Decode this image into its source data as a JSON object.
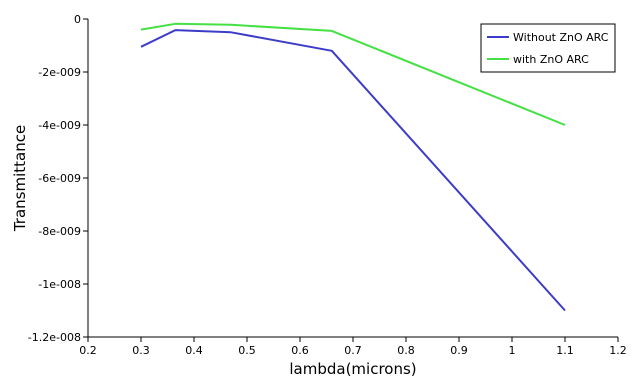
{
  "chart_data": {
    "type": "line",
    "title": "",
    "xlabel": "lambda(microns)",
    "ylabel": "Transmittance",
    "xlim": [
      0.2,
      1.2
    ],
    "ylim": [
      -1.2e-08,
      0
    ],
    "x_ticks": [
      0.2,
      0.3,
      0.4,
      0.5,
      0.6,
      0.7,
      0.8,
      0.9,
      1.0,
      1.1,
      1.2
    ],
    "x_tick_labels": [
      "0.2",
      "0.3",
      "0.4",
      "0.5",
      "0.6",
      "0.7",
      "0.8",
      "0.9",
      "1",
      "1.1",
      "1.2"
    ],
    "y_ticks": [
      0,
      -2e-09,
      -4e-09,
      -6e-09,
      -8e-09,
      -1e-08,
      -1.2e-08
    ],
    "y_tick_labels": [
      "0",
      "-2e-009",
      "-4e-009",
      "-6e-009",
      "-8e-009",
      "-1e-008",
      "-1.2e-008"
    ],
    "grid": false,
    "legend_position": "top-right",
    "series": [
      {
        "name": "Without ZnO ARC",
        "color": "#3c3cc8",
        "x": [
          0.3,
          0.365,
          0.47,
          0.66,
          1.1
        ],
        "y": [
          -1.05e-09,
          -4.2e-10,
          -5e-10,
          -1.2e-09,
          -1.1e-08
        ]
      },
      {
        "name": "with ZnO ARC",
        "color": "#44e044",
        "x": [
          0.3,
          0.365,
          0.47,
          0.66,
          1.1
        ],
        "y": [
          -4e-10,
          -1.8e-10,
          -2.2e-10,
          -4.5e-10,
          -4e-09
        ]
      }
    ]
  }
}
